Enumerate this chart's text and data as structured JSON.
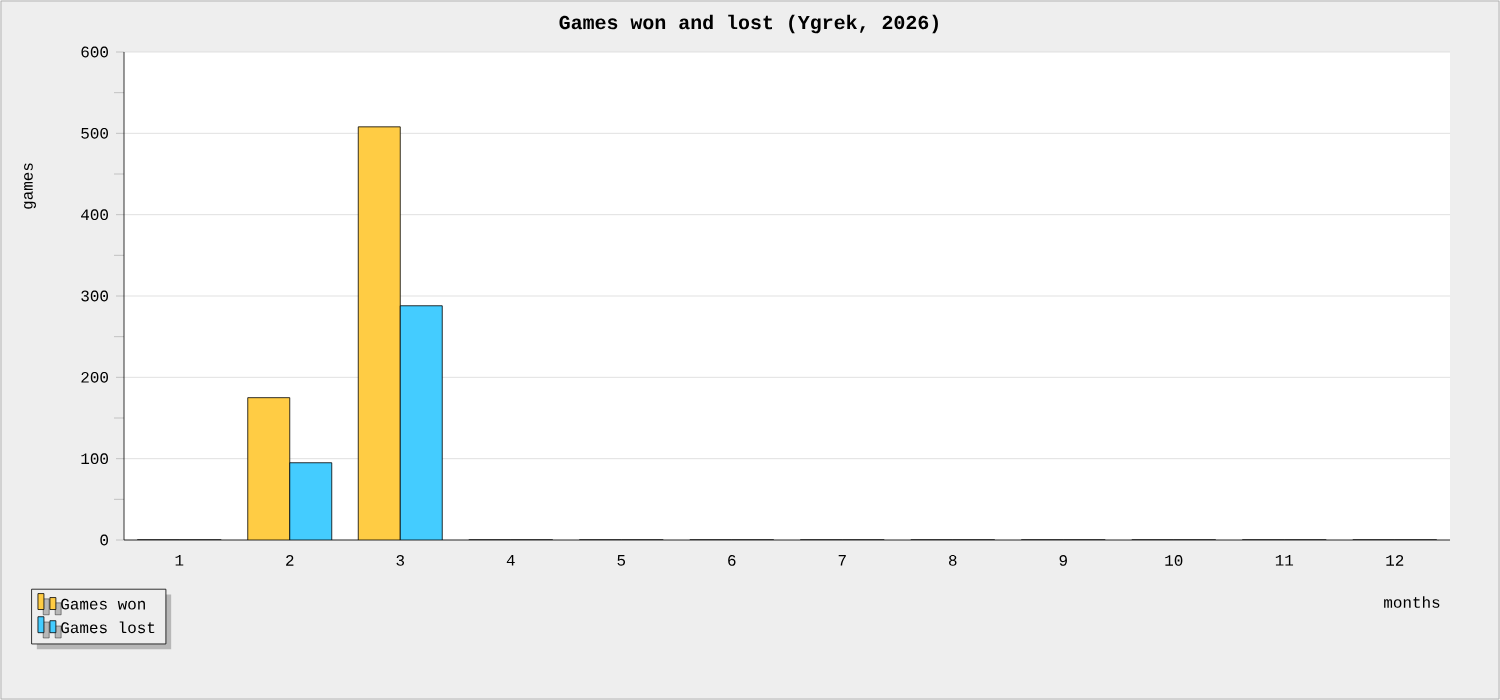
{
  "chart_data": {
    "type": "bar",
    "title": "Games won and lost (Ygrek, 2026)",
    "xlabel": "months",
    "ylabel": "games",
    "categories": [
      "1",
      "2",
      "3",
      "4",
      "5",
      "6",
      "7",
      "8",
      "9",
      "10",
      "11",
      "12"
    ],
    "series": [
      {
        "name": "Games won",
        "color": "#ffcc44",
        "values": [
          0,
          175,
          508,
          0,
          0,
          0,
          0,
          0,
          0,
          0,
          0,
          0
        ]
      },
      {
        "name": "Games lost",
        "color": "#44ccff",
        "values": [
          0,
          95,
          288,
          0,
          0,
          0,
          0,
          0,
          0,
          0,
          0,
          0
        ]
      }
    ],
    "ylim": [
      0,
      600
    ],
    "yticks": [
      0,
      100,
      200,
      300,
      400,
      500,
      600
    ],
    "grid": "y",
    "legend": "bottom left"
  }
}
